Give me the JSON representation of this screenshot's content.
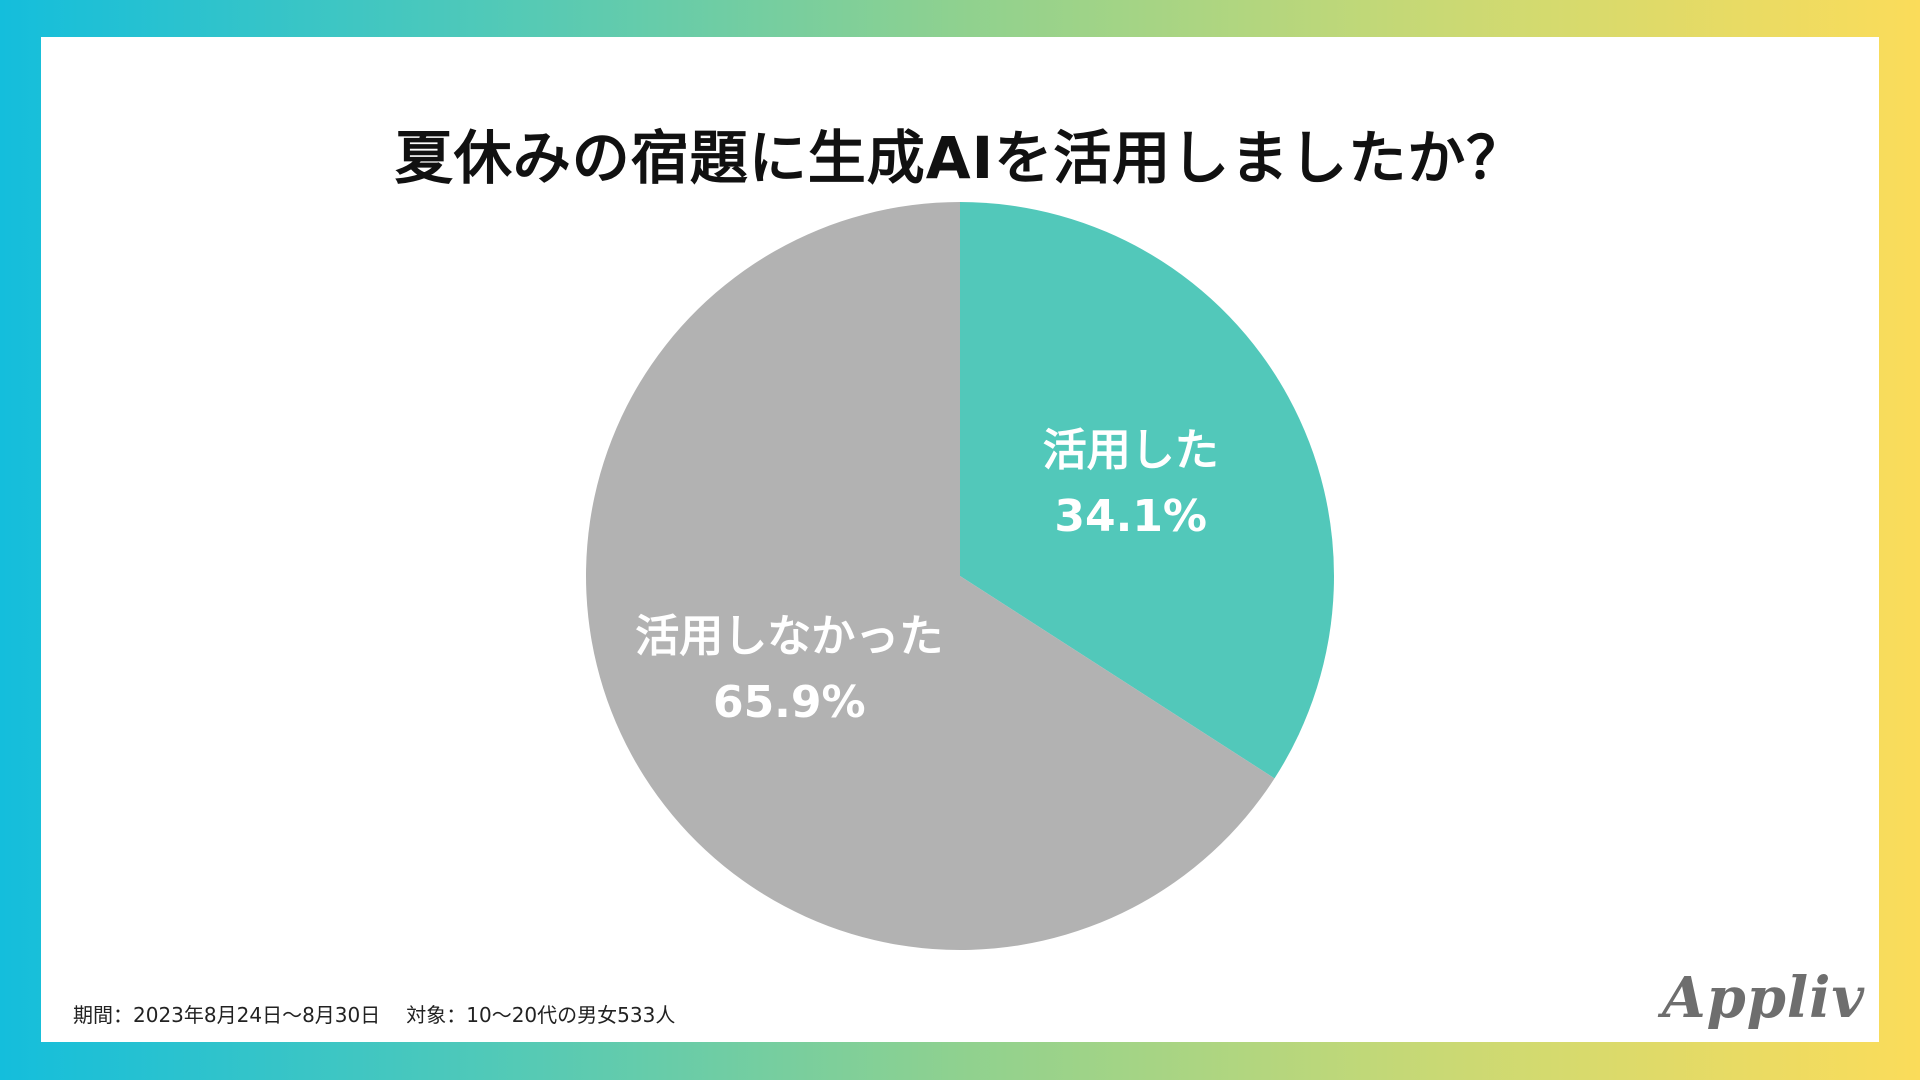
{
  "chart_data": {
    "type": "pie",
    "title": "夏休みの宿題に生成AIを活用しましたか？",
    "slices": [
      {
        "label": "活用した",
        "value": 34.1,
        "value_label": "34.1%",
        "color": "#52c8ba"
      },
      {
        "label": "活用しなかった",
        "value": 65.9,
        "value_label": "65.9%",
        "color": "#b2b2b2"
      }
    ],
    "start_angle": "12 o'clock",
    "direction": "clockwise"
  },
  "footnote": {
    "period": "期間：2023年8月24日～8月30日",
    "subjects": "対象：10～20代の男女533人"
  },
  "logo": {
    "text": "Appliv",
    "color": "#6e6e6e"
  },
  "colors": {
    "background_gradient": [
      "#14bedc",
      "#fbdc5a"
    ],
    "card": "#ffffff",
    "label_text": "#ffffff"
  }
}
